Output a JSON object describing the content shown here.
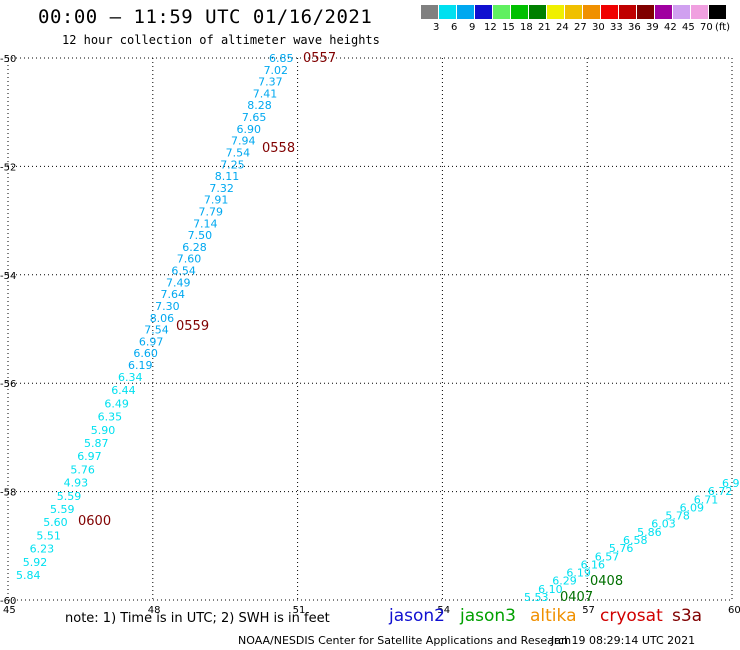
{
  "header": {
    "title": "00:00 – 11:59 UTC 01/16/2021",
    "subtitle": "12 hour collection of altimeter wave heights"
  },
  "legend": {
    "unit": "(ft)",
    "bins": [
      {
        "label": "3",
        "color": "#808080"
      },
      {
        "label": "6",
        "color": "#00e0f0"
      },
      {
        "label": "9",
        "color": "#00a8f0"
      },
      {
        "label": "12",
        "color": "#1010d0"
      },
      {
        "label": "15",
        "color": "#60f060"
      },
      {
        "label": "18",
        "color": "#00c000"
      },
      {
        "label": "21",
        "color": "#008000"
      },
      {
        "label": "24",
        "color": "#f0f000"
      },
      {
        "label": "27",
        "color": "#f0c000"
      },
      {
        "label": "30",
        "color": "#f09000"
      },
      {
        "label": "33",
        "color": "#f00000"
      },
      {
        "label": "36",
        "color": "#c00000"
      },
      {
        "label": "39",
        "color": "#800000"
      },
      {
        "label": "42",
        "color": "#a000a0"
      },
      {
        "label": "45",
        "color": "#d0a0f0"
      },
      {
        "label": "70",
        "color": "#f0a0e0"
      },
      {
        "label": "",
        "color": "#000000"
      }
    ]
  },
  "map": {
    "x_ticks": [
      "45",
      "48",
      "51",
      "54",
      "57",
      "60"
    ],
    "y_ticks": [
      "-50",
      "-52",
      "-54",
      "-56",
      "-58",
      "-60"
    ],
    "lon_range": [
      45,
      60
    ],
    "lat_range": [
      -50,
      -60
    ],
    "grid": "dotted"
  },
  "chart_data": {
    "type": "scatter",
    "xlabel": "",
    "ylabel": "",
    "track_a": {
      "color": "#00a8f0",
      "values": [
        "6.85",
        "7.02",
        "7.37",
        "7.41",
        "8.28",
        "7.65",
        "6.90",
        "7.94",
        "7.54",
        "7.25",
        "8.11",
        "7.32",
        "7.91",
        "7.79",
        "7.14",
        "7.50",
        "6.28",
        "7.60",
        "6.54",
        "7.49",
        "7.64",
        "7.30",
        "8.06",
        "7.54",
        "6.97",
        "6.60",
        "6.19"
      ]
    },
    "track_b": {
      "color": "#00e0f0",
      "values": [
        "6.34",
        "6.44",
        "6.49",
        "6.35",
        "5.90",
        "5.87",
        "6.97",
        "5.76",
        "4.93",
        "5.59",
        "5.59",
        "5.60",
        "5.51",
        "6.23",
        "5.92",
        "5.84"
      ]
    },
    "track_c": {
      "color": "#00e0f0",
      "values": [
        "5.53",
        "6.10",
        "6.29",
        "6.19",
        "6.16",
        "6.57",
        "5.76",
        "6.58",
        "5.86",
        "6.03",
        "5.78",
        "6.09",
        "6.71",
        "6.72",
        "6.9"
      ]
    },
    "time_labels": [
      {
        "text": "0557",
        "color": "#800000"
      },
      {
        "text": "0558",
        "color": "#800000"
      },
      {
        "text": "0559",
        "color": "#800000"
      },
      {
        "text": "0600",
        "color": "#800000"
      },
      {
        "text": "0408",
        "color": "#007000"
      },
      {
        "text": "0407",
        "color": "#007000"
      }
    ]
  },
  "footer": {
    "note": "note:  1) Time is in UTC;  2) SWH is in feet",
    "satellites": [
      {
        "name": "jason2",
        "color": "#1010d0"
      },
      {
        "name": "jason3",
        "color": "#00a000"
      },
      {
        "name": "altika",
        "color": "#f09000"
      },
      {
        "name": "cryosat",
        "color": "#d00000"
      },
      {
        "name": "s3a",
        "color": "#800000"
      }
    ],
    "credit": "NOAA/NESDIS Center for Satellite Applications and Research",
    "timestamp": "Jan 19 08:29:14 UTC 2021"
  }
}
